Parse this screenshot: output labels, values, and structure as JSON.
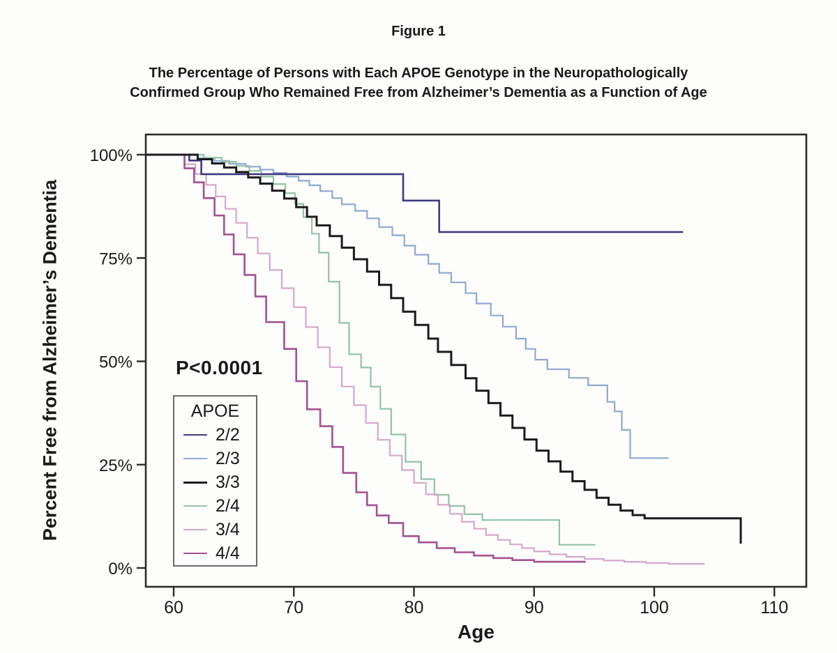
{
  "figure": {
    "label": "Figure 1",
    "title_line1": "The Percentage of Persons with Each APOE Genotype in the Neuropathologically",
    "title_line2": "Confirmed Group Who Remained Free from Alzheimer’s Dementia as a Function of Age"
  },
  "chart_data": {
    "type": "line",
    "subtype": "kaplan-meier-step",
    "title": "The Percentage of Persons with Each APOE Genotype in the Neuropathologically Confirmed Group Who Remained Free from Alzheimer’s Dementia as a Function of Age",
    "xlabel": "Age",
    "ylabel": "Percent Free from Alzheimer’s Dementia",
    "annotation": "P<0.0001",
    "legend_title": "APOE",
    "legend_position": "lower-left",
    "grid": false,
    "xlim": [
      57.7,
      112.7
    ],
    "ylim": [
      0,
      100
    ],
    "x_ticks": [
      {
        "label": "60",
        "value": 60
      },
      {
        "label": "70",
        "value": 70
      },
      {
        "label": "80",
        "value": 80
      },
      {
        "label": "90",
        "value": 90
      },
      {
        "label": "100",
        "value": 100
      },
      {
        "label": "110",
        "value": 110
      }
    ],
    "y_ticks": [
      {
        "label": "100%",
        "value": 100
      },
      {
        "label": "75%",
        "value": 75
      },
      {
        "label": "50%",
        "value": 50
      },
      {
        "label": "25%",
        "value": 25
      },
      {
        "label": "0%",
        "value": 0
      }
    ],
    "series": [
      {
        "name": "2/2",
        "color": "#3e3a82",
        "width": 2.6,
        "points": [
          [
            61.3,
            98.6
          ],
          [
            62.3,
            95.3
          ],
          [
            79.1,
            88.9
          ],
          [
            82.1,
            81.3
          ],
          [
            102.4,
            81.3
          ]
        ]
      },
      {
        "name": "2/3",
        "color": "#8fa8d3",
        "width": 2.2,
        "points": [
          [
            62,
            99.2
          ],
          [
            63.4,
            98.5
          ],
          [
            64.6,
            97.8
          ],
          [
            66,
            97.1
          ],
          [
            67.2,
            96.4
          ],
          [
            68.3,
            95.6
          ],
          [
            69.4,
            94.7
          ],
          [
            70.4,
            93.7
          ],
          [
            71.3,
            92.6
          ],
          [
            72.2,
            91.2
          ],
          [
            73.2,
            89.5
          ],
          [
            74,
            88
          ],
          [
            75.1,
            86.4
          ],
          [
            76.1,
            84.6
          ],
          [
            77.1,
            82.5
          ],
          [
            78.2,
            80.5
          ],
          [
            79.2,
            78
          ],
          [
            80.1,
            75.8
          ],
          [
            81.2,
            73.6
          ],
          [
            82.1,
            71.4
          ],
          [
            83.1,
            69.1
          ],
          [
            84.3,
            66.5
          ],
          [
            85.2,
            64
          ],
          [
            86.4,
            61.1
          ],
          [
            87.4,
            58.4
          ],
          [
            88.5,
            55.5
          ],
          [
            89.3,
            53
          ],
          [
            90.1,
            50.4
          ],
          [
            91.1,
            48.1
          ],
          [
            92.9,
            46
          ],
          [
            94.5,
            44.2
          ],
          [
            96.1,
            40.2
          ],
          [
            96.7,
            37.9
          ],
          [
            97.3,
            33.4
          ],
          [
            98,
            26.6
          ],
          [
            101.2,
            26.6
          ]
        ]
      },
      {
        "name": "3/3",
        "color": "#1b1b1f",
        "width": 3,
        "points": [
          [
            62,
            98.9
          ],
          [
            63.2,
            97.9
          ],
          [
            64.2,
            96.9
          ],
          [
            65.2,
            95.8
          ],
          [
            66.2,
            94.5
          ],
          [
            67.2,
            93
          ],
          [
            68.2,
            91.3
          ],
          [
            69.2,
            89.4
          ],
          [
            70.2,
            87.3
          ],
          [
            71.1,
            85
          ],
          [
            71.9,
            82.9
          ],
          [
            73,
            80.3
          ],
          [
            74,
            77.5
          ],
          [
            75,
            74.7
          ],
          [
            76.1,
            71.7
          ],
          [
            77.1,
            68.5
          ],
          [
            78.1,
            65.3
          ],
          [
            79.1,
            62
          ],
          [
            80.1,
            58.8
          ],
          [
            81.2,
            55.5
          ],
          [
            82,
            52.3
          ],
          [
            83.1,
            49.1
          ],
          [
            84.3,
            45.9
          ],
          [
            85.2,
            42.9
          ],
          [
            86.2,
            39.9
          ],
          [
            87.2,
            36.9
          ],
          [
            88.2,
            33.9
          ],
          [
            89.2,
            31.1
          ],
          [
            90.2,
            28.4
          ],
          [
            91.2,
            25.8
          ],
          [
            92.2,
            23.3
          ],
          [
            93.2,
            21
          ],
          [
            94.2,
            18.9
          ],
          [
            95.2,
            17
          ],
          [
            96.2,
            15.3
          ],
          [
            97.2,
            13.9
          ],
          [
            98.2,
            12.8
          ],
          [
            99.2,
            12
          ],
          [
            107.2,
            12
          ],
          [
            107.2,
            5.9
          ]
        ]
      },
      {
        "name": "2/4",
        "color": "#93c2a6",
        "width": 2.2,
        "points": [
          [
            62.5,
            99.3
          ],
          [
            64,
            98.3
          ],
          [
            65.2,
            97.3
          ],
          [
            66.3,
            96.1
          ],
          [
            67.3,
            94.7
          ],
          [
            68.3,
            92.9
          ],
          [
            69.3,
            90.7
          ],
          [
            70.1,
            88.1
          ],
          [
            70.8,
            84.9
          ],
          [
            71.5,
            80.9
          ],
          [
            72.1,
            76.3
          ],
          [
            72.9,
            69.3
          ],
          [
            73.8,
            59.3
          ],
          [
            74.6,
            51.7
          ],
          [
            75.6,
            48.5
          ],
          [
            76.4,
            43.9
          ],
          [
            77.2,
            38.5
          ],
          [
            78.1,
            32.3
          ],
          [
            79.3,
            25.7
          ],
          [
            80.6,
            21.5
          ],
          [
            81.7,
            17.7
          ],
          [
            82.9,
            15
          ],
          [
            84.2,
            13
          ],
          [
            85.7,
            11.6
          ],
          [
            92.1,
            11.6
          ],
          [
            92.1,
            5.6
          ],
          [
            95.1,
            5.6
          ]
        ]
      },
      {
        "name": "3/4",
        "color": "#d4a8cb",
        "width": 2.2,
        "points": [
          [
            60.9,
            97.7
          ],
          [
            61.8,
            95.3
          ],
          [
            62.7,
            92.7
          ],
          [
            63.5,
            89.9
          ],
          [
            64.3,
            86.9
          ],
          [
            65.2,
            83.5
          ],
          [
            66.1,
            79.9
          ],
          [
            67,
            76.1
          ],
          [
            68,
            72.1
          ],
          [
            69,
            67.7
          ],
          [
            70,
            63.1
          ],
          [
            71,
            58.3
          ],
          [
            72,
            53.4
          ],
          [
            73,
            48.6
          ],
          [
            74,
            43.9
          ],
          [
            75,
            39.4
          ],
          [
            76,
            35.1
          ],
          [
            77,
            31
          ],
          [
            78,
            27.2
          ],
          [
            79,
            23.7
          ],
          [
            80,
            20.6
          ],
          [
            81,
            17.8
          ],
          [
            82,
            15.3
          ],
          [
            83,
            13.1
          ],
          [
            84,
            11.2
          ],
          [
            85,
            9.5
          ],
          [
            86,
            8
          ],
          [
            87,
            6.8
          ],
          [
            88,
            5.7
          ],
          [
            89,
            4.8
          ],
          [
            90,
            4
          ],
          [
            91.3,
            3.3
          ],
          [
            92.7,
            2.7
          ],
          [
            94.2,
            2.2
          ],
          [
            95.8,
            1.8
          ],
          [
            97.5,
            1.5
          ],
          [
            99.3,
            1.2
          ],
          [
            101.2,
            1
          ],
          [
            104.2,
            1
          ]
        ]
      },
      {
        "name": "4/4",
        "color": "#a4518f",
        "width": 2.6,
        "points": [
          [
            60.9,
            96.7
          ],
          [
            61.7,
            93.3
          ],
          [
            62.5,
            89.5
          ],
          [
            63.4,
            85.3
          ],
          [
            64.2,
            80.7
          ],
          [
            65,
            75.9
          ],
          [
            65.9,
            70.9
          ],
          [
            66.8,
            65.7
          ],
          [
            67.7,
            59.5
          ],
          [
            69.2,
            53
          ],
          [
            70.2,
            45.2
          ],
          [
            71.1,
            38.4
          ],
          [
            72.2,
            34.3
          ],
          [
            73.2,
            29.3
          ],
          [
            74.1,
            23
          ],
          [
            75.2,
            18.3
          ],
          [
            76.1,
            15.2
          ],
          [
            76.9,
            12.7
          ],
          [
            77.9,
            10.9
          ],
          [
            79.1,
            7.7
          ],
          [
            80.4,
            6.2
          ],
          [
            81.9,
            4.8
          ],
          [
            83.4,
            3.8
          ],
          [
            85,
            3
          ],
          [
            86.6,
            2.4
          ],
          [
            88.2,
            1.9
          ],
          [
            90,
            1.5
          ],
          [
            94.3,
            1.5
          ]
        ]
      }
    ]
  }
}
